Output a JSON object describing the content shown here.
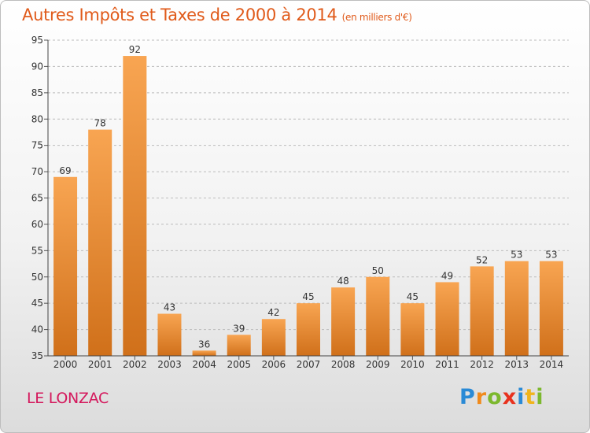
{
  "chart_data": {
    "type": "bar",
    "title": "Autres Impôts et Taxes de 2000 à 2014",
    "subtitle": "(en milliers d'€)",
    "categories": [
      "2000",
      "2001",
      "2002",
      "2003",
      "2004",
      "2005",
      "2006",
      "2007",
      "2008",
      "2009",
      "2010",
      "2011",
      "2012",
      "2013",
      "2014"
    ],
    "values": [
      69,
      78,
      92,
      43,
      36,
      39,
      42,
      45,
      48,
      50,
      45,
      49,
      52,
      53,
      53
    ],
    "ylim": [
      35,
      95
    ],
    "yticks": [
      35,
      40,
      45,
      50,
      55,
      60,
      65,
      70,
      75,
      80,
      85,
      90,
      95
    ],
    "grid": true,
    "bar_color": "#f0922e",
    "xlabel": "",
    "ylabel": ""
  },
  "place_name": "LE LONZAC",
  "logo": {
    "text": "Proxiti",
    "letters": [
      {
        "ch": "P",
        "color": "#2a8ad6"
      },
      {
        "ch": "r",
        "color": "#f08a1c"
      },
      {
        "ch": "o",
        "color": "#7cb82e"
      },
      {
        "ch": "x",
        "color": "#e8321e"
      },
      {
        "ch": "i",
        "color": "#2a8ad6"
      },
      {
        "ch": "t",
        "color": "#f0b41c"
      },
      {
        "ch": "i",
        "color": "#7cb82e"
      }
    ]
  }
}
